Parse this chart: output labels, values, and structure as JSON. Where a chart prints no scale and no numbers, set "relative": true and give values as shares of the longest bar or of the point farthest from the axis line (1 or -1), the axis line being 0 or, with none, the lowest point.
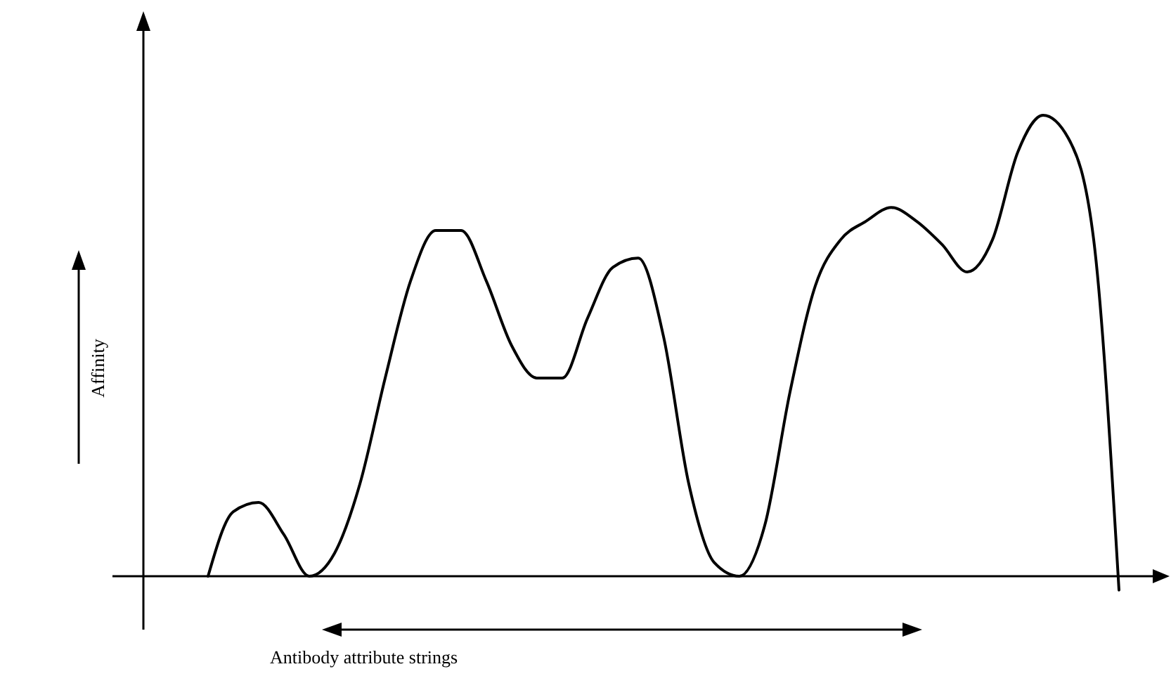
{
  "chart_data": {
    "type": "line",
    "relative": true,
    "ylabel": "Affinity",
    "xlabel": "Antibody attribute strings",
    "categories": [
      null,
      null,
      null,
      null,
      null,
      null,
      null,
      null,
      null,
      null,
      null,
      null,
      null,
      null,
      null,
      null,
      null,
      null,
      null,
      null,
      null,
      null,
      null,
      null,
      null,
      null,
      null,
      null,
      null,
      null,
      null,
      null,
      null,
      null,
      null,
      null,
      null
    ],
    "series": [
      {
        "color": "#000000",
        "values": [
          0,
          0.14,
          0.16,
          0.09,
          0,
          0.05,
          0.2,
          0.43,
          0.64,
          0.75,
          0.75,
          0.64,
          0.5,
          0.43,
          0.43,
          0.56,
          0.67,
          0.69,
          0.52,
          0.2,
          0.03,
          0,
          0.11,
          0.4,
          0.63,
          0.73,
          0.77,
          0.8,
          0.77,
          0.72,
          0.66,
          0.73,
          0.92,
          1,
          0.95,
          0.73,
          -0.03
        ]
      }
    ],
    "marker": "none",
    "line_style": "solid"
  }
}
